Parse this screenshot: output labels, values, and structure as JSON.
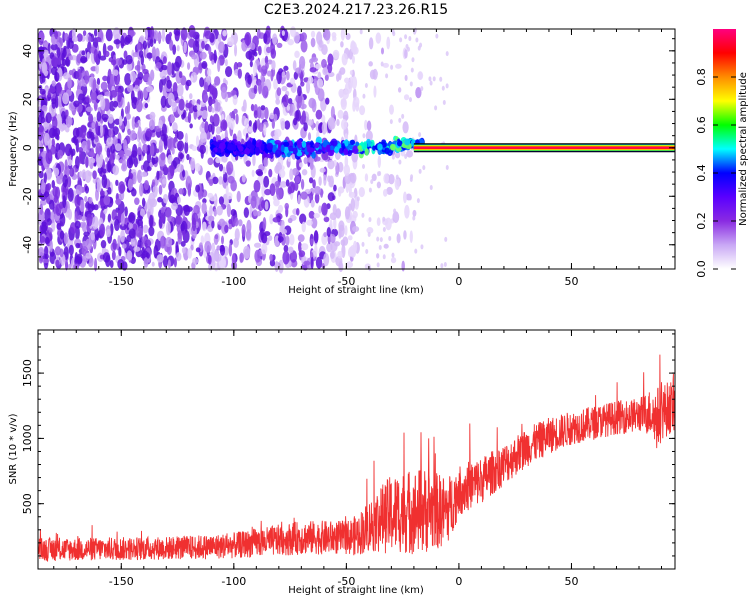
{
  "title": "C2E3.2024.217.23.26.R15",
  "chart_data": [
    {
      "type": "heatmap",
      "xlabel": "Height of straight line (km)",
      "ylabel": "Frequency (Hz)",
      "xlim": [
        -187,
        96
      ],
      "ylim": [
        -50,
        49
      ],
      "xticks": [
        -150,
        -100,
        -50,
        0,
        50
      ],
      "yticks": [
        -40,
        -20,
        0,
        20,
        40
      ],
      "carrier_line_frequency": 0,
      "carrier_line_x_range": [
        -20,
        96
      ],
      "colorbar": {
        "label": "Normalized spectral amplitude",
        "range": [
          0,
          1
        ],
        "ticks": [
          0.0,
          0.2,
          0.4,
          0.6,
          0.8
        ],
        "colors": [
          "#ffffff",
          "#c9a8f5",
          "#8a2be2",
          "#5a00ff",
          "#0000ff",
          "#00ffff",
          "#00ff00",
          "#ffff00",
          "#ff8c00",
          "#ff0000",
          "#ff007f"
        ]
      }
    },
    {
      "type": "line",
      "xlabel": "Height of straight line (km)",
      "ylabel": "SNR (10 * v/v)",
      "xlim": [
        -187,
        96
      ],
      "ylim": [
        0,
        1830
      ],
      "xticks": [
        -150,
        -100,
        -50,
        0,
        50
      ],
      "yticks": [
        500,
        1000,
        1500
      ],
      "color": "#f03030",
      "series": [
        {
          "name": "SNR",
          "x": [
            -187,
            -170,
            -150,
            -130,
            -110,
            -100,
            -90,
            -80,
            -70,
            -60,
            -50,
            -45,
            -40,
            -35,
            -30,
            -25,
            -20,
            -15,
            -10,
            -5,
            0,
            10,
            20,
            30,
            40,
            50,
            60,
            70,
            80,
            85,
            88,
            90,
            95
          ],
          "values": [
            150,
            150,
            155,
            160,
            170,
            180,
            200,
            220,
            240,
            240,
            240,
            260,
            330,
            380,
            420,
            440,
            440,
            450,
            440,
            450,
            600,
            680,
            800,
            930,
            1020,
            1080,
            1120,
            1160,
            1180,
            1200,
            1150,
            1200,
            1250
          ],
          "noise_amplitude": [
            90,
            90,
            90,
            90,
            95,
            100,
            110,
            120,
            130,
            130,
            130,
            160,
            200,
            260,
            300,
            320,
            330,
            330,
            300,
            260,
            200,
            180,
            160,
            150,
            140,
            130,
            130,
            130,
            130,
            180,
            250,
            220,
            200
          ]
        }
      ]
    }
  ]
}
